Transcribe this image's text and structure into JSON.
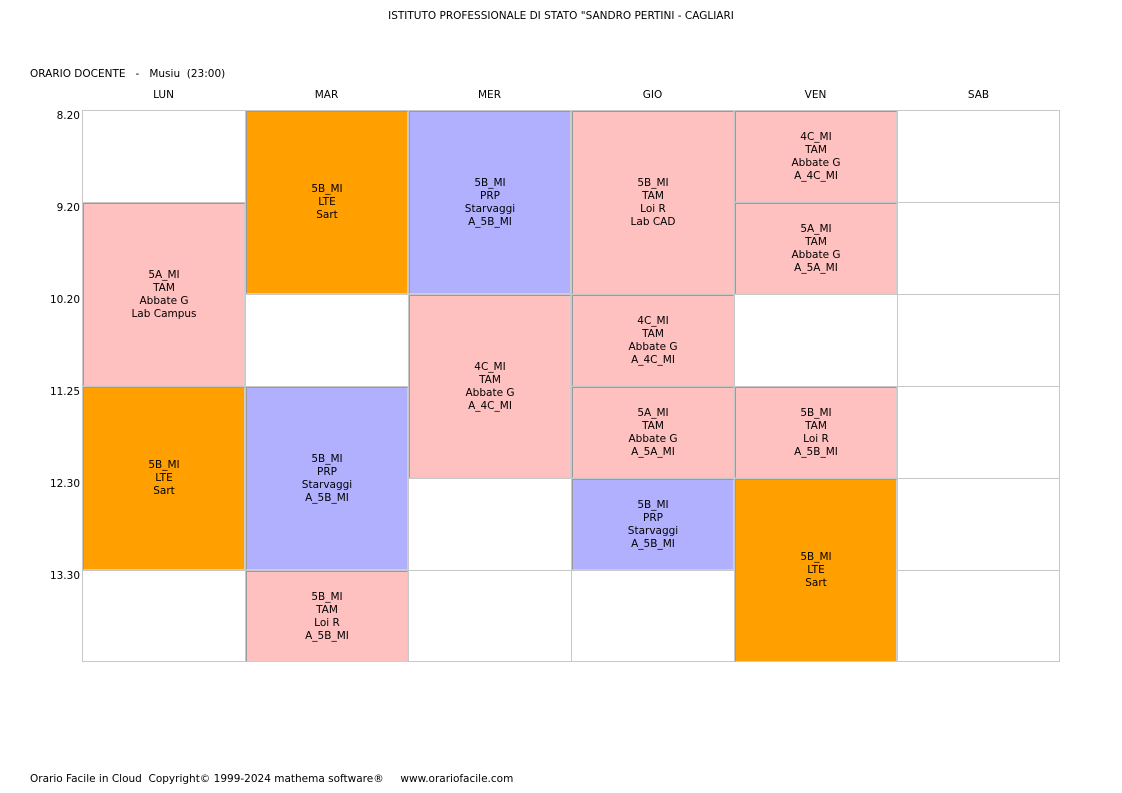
{
  "header": {
    "school": "ISTITUTO PROFESSIONALE DI STATO \"SANDRO PERTINI - CAGLIARI",
    "teacher_line": "ORARIO DOCENTE   -   Musiu  (23:00)"
  },
  "days": [
    "LUN",
    "MAR",
    "MER",
    "GIO",
    "VEN",
    "SAB"
  ],
  "times": [
    "8.20",
    "9.20",
    "10.20",
    "11.25",
    "12.30",
    "13.30"
  ],
  "lessons": [
    {
      "day": 0,
      "start": 1,
      "span": 2,
      "color": "#ffc0c0",
      "lines": [
        "5A_MI",
        "TAM",
        "Abbate G",
        "Lab Campus"
      ]
    },
    {
      "day": 0,
      "start": 3,
      "span": 2,
      "color": "#ffa000",
      "lines": [
        "5B_MI",
        "LTE",
        "Sart"
      ]
    },
    {
      "day": 1,
      "start": 0,
      "span": 2,
      "color": "#ffa000",
      "lines": [
        "5B_MI",
        "LTE",
        "Sart"
      ]
    },
    {
      "day": 1,
      "start": 3,
      "span": 2,
      "color": "#b0b0ff",
      "lines": [
        "5B_MI",
        "PRP",
        "Starvaggi",
        "A_5B_MI"
      ]
    },
    {
      "day": 1,
      "start": 5,
      "span": 1,
      "color": "#ffc0c0",
      "lines": [
        "5B_MI",
        "TAM",
        "Loi R",
        "A_5B_MI"
      ]
    },
    {
      "day": 2,
      "start": 0,
      "span": 2,
      "color": "#b0b0ff",
      "lines": [
        "5B_MI",
        "PRP",
        "Starvaggi",
        "A_5B_MI"
      ]
    },
    {
      "day": 2,
      "start": 2,
      "span": 2,
      "color": "#ffc0c0",
      "lines": [
        "4C_MI",
        "TAM",
        "Abbate G",
        "A_4C_MI"
      ]
    },
    {
      "day": 3,
      "start": 0,
      "span": 2,
      "color": "#ffc0c0",
      "lines": [
        "5B_MI",
        "TAM",
        "Loi R",
        "Lab CAD"
      ]
    },
    {
      "day": 3,
      "start": 2,
      "span": 1,
      "color": "#ffc0c0",
      "lines": [
        "4C_MI",
        "TAM",
        "Abbate G",
        "A_4C_MI"
      ]
    },
    {
      "day": 3,
      "start": 3,
      "span": 1,
      "color": "#ffc0c0",
      "lines": [
        "5A_MI",
        "TAM",
        "Abbate G",
        "A_5A_MI"
      ]
    },
    {
      "day": 3,
      "start": 4,
      "span": 1,
      "color": "#b0b0ff",
      "lines": [
        "5B_MI",
        "PRP",
        "Starvaggi",
        "A_5B_MI"
      ]
    },
    {
      "day": 4,
      "start": 0,
      "span": 1,
      "color": "#ffc0c0",
      "lines": [
        "4C_MI",
        "TAM",
        "Abbate G",
        "A_4C_MI"
      ]
    },
    {
      "day": 4,
      "start": 1,
      "span": 1,
      "color": "#ffc0c0",
      "lines": [
        "5A_MI",
        "TAM",
        "Abbate G",
        "A_5A_MI"
      ]
    },
    {
      "day": 4,
      "start": 3,
      "span": 1,
      "color": "#ffc0c0",
      "lines": [
        "5B_MI",
        "TAM",
        "Loi R",
        "A_5B_MI"
      ]
    },
    {
      "day": 4,
      "start": 4,
      "span": 2,
      "color": "#ffa000",
      "lines": [
        "5B_MI",
        "LTE",
        "Sart"
      ]
    }
  ],
  "footer": "Orario Facile in Cloud  Copyright© 1999-2024 mathema software®     www.orariofacile.com"
}
